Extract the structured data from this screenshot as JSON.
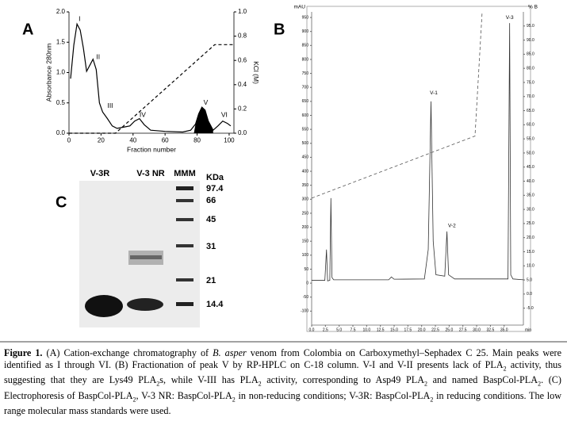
{
  "chart_data": [
    {
      "type": "line",
      "panel": "A",
      "xlabel": "Fraction number",
      "ylabel": "Absorbance 280nm",
      "y2label": "KCl (M)",
      "xlim": [
        0,
        103
      ],
      "xticks": [
        0,
        20,
        40,
        60,
        80,
        100
      ],
      "ylim": [
        0,
        2.0
      ],
      "yticks": [
        {
          "value": 0,
          "label": "0.0"
        },
        {
          "value": 0.5,
          "label": "0.5"
        },
        {
          "value": 1.0,
          "label": "1.0"
        },
        {
          "value": 1.5,
          "label": "1.5"
        },
        {
          "value": 2.0,
          "label": "2.0"
        }
      ],
      "y2lim": [
        0,
        1.0
      ],
      "y2ticks": [
        {
          "value": 0,
          "label": "0.0"
        },
        {
          "value": 0.2,
          "label": "0.2"
        },
        {
          "value": 0.4,
          "label": "0.4"
        },
        {
          "value": 0.6,
          "label": "0.6"
        },
        {
          "value": 0.8,
          "label": "0.8"
        },
        {
          "value": 1.0,
          "label": "1.0"
        }
      ],
      "series": [
        {
          "color": "#000000",
          "x": [
            1,
            3,
            5,
            7,
            9,
            11,
            13,
            15,
            17,
            19,
            21,
            24,
            27,
            30,
            34,
            38,
            41,
            44,
            47,
            51,
            60,
            71,
            76,
            79,
            81,
            83,
            85,
            87,
            90,
            93,
            96,
            99,
            101
          ],
          "values": [
            0.9,
            1.45,
            1.8,
            1.7,
            1.4,
            1.02,
            1.12,
            1.22,
            1.05,
            0.5,
            0.35,
            0.24,
            0.12,
            0.08,
            0.1,
            0.12,
            0.2,
            0.24,
            0.14,
            0.05,
            0.03,
            0.02,
            0.05,
            0.15,
            0.32,
            0.43,
            0.38,
            0.2,
            0.05,
            0.12,
            0.2,
            0.16,
            0.12
          ],
          "shade_x": [
            78,
            90
          ]
        },
        {
          "color": "#000000",
          "dashed": true,
          "axis": "y2",
          "x": [
            0,
            29,
            91,
            103
          ],
          "values": [
            0,
            0,
            0.73,
            0.73
          ]
        }
      ],
      "annotations": [
        {
          "text": "I",
          "x": 6,
          "y": 1.88
        },
        {
          "text": "II",
          "x": 17,
          "y": 1.25
        },
        {
          "text": "III",
          "x": 24,
          "y": 0.45
        },
        {
          "text": "IV",
          "x": 44,
          "y": 0.3
        },
        {
          "text": "V",
          "x": 84,
          "y": 0.5
        },
        {
          "text": "VI",
          "x": 95,
          "y": 0.3
        }
      ]
    },
    {
      "type": "line",
      "panel": "B",
      "xlabel": "min",
      "ylabel": "mAU",
      "y2label": "% B",
      "xlim": [
        0,
        38.5
      ],
      "xticks": [
        {
          "value": 0,
          "label": "0.0"
        },
        2.5,
        {
          "value": 5,
          "label": "5.0"
        },
        7.5,
        {
          "value": 10,
          "label": "10.0"
        },
        12.5,
        {
          "value": 15,
          "label": "15.0"
        },
        17.5,
        {
          "value": 20,
          "label": "20.0"
        },
        22.5,
        {
          "value": 25,
          "label": "25.0"
        },
        27.5,
        {
          "value": 30,
          "label": "30.0"
        },
        32.5,
        {
          "value": 35,
          "label": "35.0"
        }
      ],
      "ylim": [
        -150,
        970
      ],
      "yticks": [
        -100,
        -50,
        0,
        50,
        100,
        150,
        200,
        250,
        300,
        350,
        400,
        450,
        500,
        550,
        600,
        650,
        700,
        750,
        800,
        850,
        900,
        950
      ],
      "y2lim": [
        -11,
        100
      ],
      "y2ticks": [
        {
          "value": -5,
          "label": "-5.0"
        },
        {
          "value": 0,
          "label": "0.0"
        },
        {
          "value": 5,
          "label": "5.0"
        },
        {
          "value": 10,
          "label": "10.0"
        },
        {
          "value": 15,
          "label": "15.0"
        },
        {
          "value": 20,
          "label": "20.0"
        },
        {
          "value": 25,
          "label": "25.0"
        },
        {
          "value": 30,
          "label": "30.0"
        },
        {
          "value": 35,
          "label": "35.0"
        },
        {
          "value": 40,
          "label": "40.0"
        },
        {
          "value": 45,
          "label": "45.0"
        },
        {
          "value": 50,
          "label": "50.0"
        },
        {
          "value": 55,
          "label": "55.0"
        },
        {
          "value": 60,
          "label": "60.0"
        },
        {
          "value": 65,
          "label": "65.0"
        },
        {
          "value": 70,
          "label": "70.0"
        },
        {
          "value": 75,
          "label": "75.0"
        },
        {
          "value": 80,
          "label": "80.0"
        },
        {
          "value": 85,
          "label": "85.0"
        },
        {
          "value": 90,
          "label": "90.0"
        },
        {
          "value": 95,
          "label": "95.0"
        }
      ],
      "series": [
        {
          "color": "#333333",
          "x": [
            0,
            2.4,
            2.7,
            2.9,
            3.3,
            3.5,
            3.7,
            4,
            14,
            14.5,
            15,
            20.5,
            21.2,
            21.7,
            22.1,
            22.6,
            24.2,
            24.6,
            24.9,
            26,
            35.7,
            36,
            36.2,
            36.6,
            38.5
          ],
          "values": [
            10,
            10,
            120,
            8,
            10,
            304,
            20,
            12,
            12,
            22,
            14,
            15,
            120,
            650,
            150,
            30,
            25,
            185,
            30,
            15,
            15,
            930,
            30,
            15,
            12
          ]
        },
        {
          "color": "#555555",
          "dashed": true,
          "axis": "y2",
          "x": [
            0,
            29.7,
            31
          ],
          "values": [
            34,
            56,
            100
          ]
        }
      ],
      "annotations": [
        {
          "text": "V-1",
          "x": 21.5,
          "y": 680
        },
        {
          "text": "V-2",
          "x": 24.8,
          "y": 205
        },
        {
          "text": "V-3",
          "x": 35.3,
          "y": 950
        }
      ]
    }
  ],
  "gel": {
    "panel": "C",
    "lanes": [
      "V-3R",
      "V-3 NR",
      "MMM"
    ],
    "unit": "KDa",
    "markers": [
      "97.4",
      "66",
      "45",
      "31",
      "21",
      "14.4"
    ]
  },
  "caption": {
    "label": "Figure 1.",
    "runs": [
      {
        "text": " (A) Cation-exchange chromatography of "
      },
      {
        "text": "B. asper",
        "style": "i"
      },
      {
        "text": " venom from Colombia on Carboxymethyl–Sephadex C 25. Main peaks were identified as I through VI. (B) Fractionation of peak V by RP-HPLC on C-18 column. V-I and V-II presents lack of PLA"
      },
      {
        "text": "2",
        "style": "sub"
      },
      {
        "text": " activity, thus suggesting that they are Lys49 PLA"
      },
      {
        "text": "2",
        "style": "sub"
      },
      {
        "text": "s, while V-III has PLA"
      },
      {
        "text": "2",
        "style": "sub"
      },
      {
        "text": " activity, corresponding to Asp49 PLA"
      },
      {
        "text": "2",
        "style": "sub"
      },
      {
        "text": " and named BaspCol-PLA"
      },
      {
        "text": "2",
        "style": "sub"
      },
      {
        "text": ". (C) Electrophoresis of BaspCol-PLA"
      },
      {
        "text": "2",
        "style": "sub"
      },
      {
        "text": ", V-3 NR: BaspCol-PLA"
      },
      {
        "text": "2",
        "style": "sub"
      },
      {
        "text": " in non-reducing conditions; V-3R: BaspCol-PLA"
      },
      {
        "text": "2",
        "style": "sub"
      },
      {
        "text": " in reducing conditions. The low range molecular mass standards were used."
      }
    ]
  }
}
